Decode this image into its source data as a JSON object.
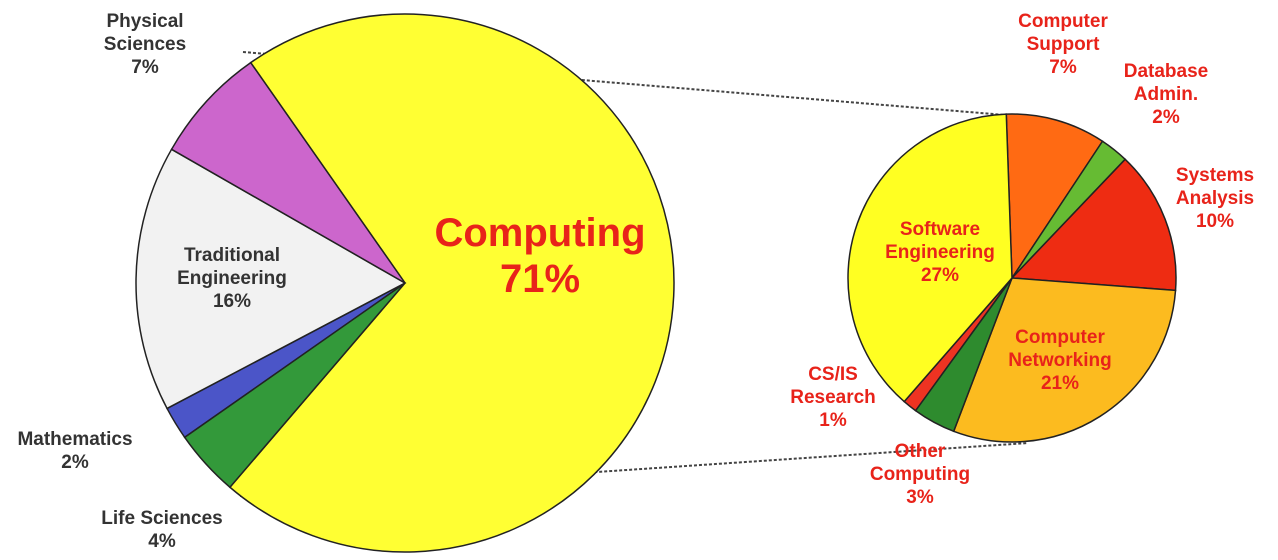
{
  "chart_data": [
    {
      "type": "pie",
      "categories": [
        "Computing",
        "Life Sciences",
        "Mathematics",
        "Traditional Engineering",
        "Physical Sciences"
      ],
      "values": [
        71,
        4,
        2,
        16,
        7
      ],
      "value_labels": [
        "71%",
        "4%",
        "2%",
        "16%",
        "7%"
      ],
      "colors": [
        "#ffff33",
        "#33993a",
        "#4b55c8",
        "#f2f2f2",
        "#cc66cc"
      ]
    },
    {
      "type": "pie",
      "categories": [
        "Computer Support",
        "Database Admin.",
        "Systems Analysis",
        "Computer Networking",
        "Other Computing",
        "CS/IS Research",
        "Software Engineering"
      ],
      "values": [
        7,
        2,
        10,
        21,
        3,
        1,
        27
      ],
      "value_labels": [
        "7%",
        "2%",
        "10%",
        "21%",
        "3%",
        "1%",
        "27%"
      ],
      "colors": [
        "#ff6a13",
        "#66bb33",
        "#ee2c12",
        "#fcbb1f",
        "#2e8b2e",
        "#ee3322",
        "#ffff22"
      ]
    }
  ]
}
